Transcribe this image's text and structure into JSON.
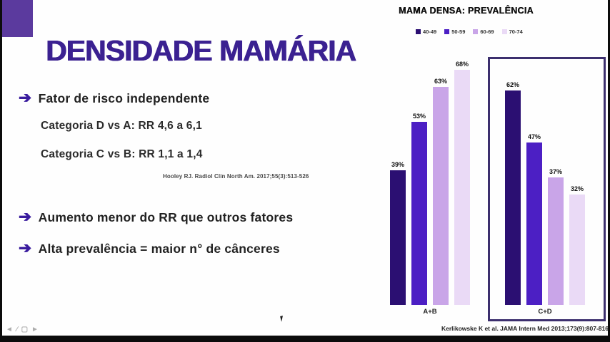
{
  "slide": {
    "title": "DENSIDADE MAMÁRIA",
    "arrow_glyph": "➔",
    "bullet1": "Fator de risco independente",
    "sub1": "Categoria D vs A: RR 4,6 a 6,1",
    "sub2": "Categoria C vs B: RR 1,1 a 1,4",
    "citation": "Hooley RJ. Radiol Clin North Am. 2017;55(3):513-526",
    "bullet2": "Aumento menor do RR que outros fatores",
    "bullet3": "Alta prevalência = maior n° de cânceres"
  },
  "chart_data": {
    "type": "bar",
    "title": "MAMA DENSA: PREVALÊNCIA",
    "categories": [
      "A+B",
      "C+D"
    ],
    "series": [
      {
        "name": "40-49",
        "color": "#2b0f72",
        "values": [
          39,
          62
        ]
      },
      {
        "name": "50-59",
        "color": "#4c1fc4",
        "values": [
          53,
          47
        ]
      },
      {
        "name": "60-69",
        "color": "#c9a5e8",
        "values": [
          63,
          37
        ]
      },
      {
        "name": "70-74",
        "color": "#eadaf6",
        "values": [
          68,
          32
        ]
      }
    ],
    "value_suffix": "%",
    "ylim": [
      0,
      77
    ],
    "grid": false,
    "legend_position": "top",
    "highlight_box_category": "C+D",
    "citation": "Kerlikowske K et al. JAMA Intern Med 2013;173(9):807-816"
  },
  "player": {
    "controls": [
      {
        "name": "prev-slide",
        "glyph": "◄"
      },
      {
        "name": "pen-tool",
        "glyph": "∕"
      },
      {
        "name": "slide-menu",
        "glyph": "▢"
      },
      {
        "name": "next-slide",
        "glyph": "►"
      }
    ]
  },
  "colors": {
    "title": "#3b2191",
    "deco_square": "#5b3a9e",
    "arrow": "#3a1c9e",
    "highlight_box_border": "#3c2f6e"
  }
}
